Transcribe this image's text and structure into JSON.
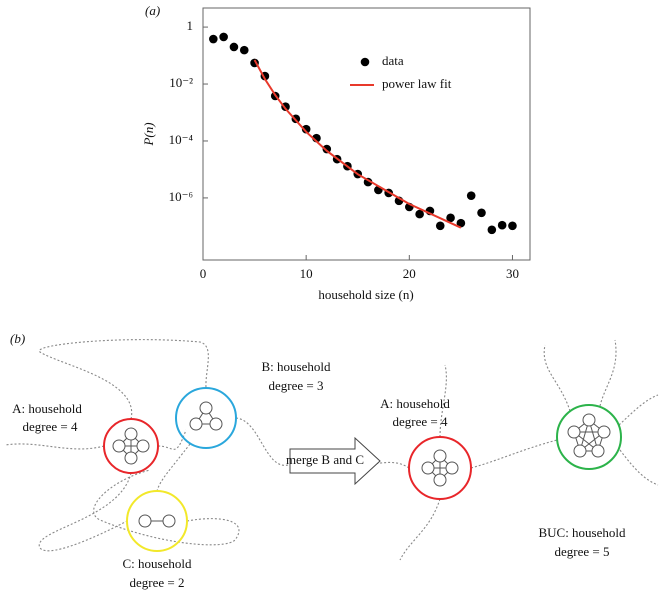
{
  "chart_data": {
    "type": "scatter",
    "title": "(a)",
    "x_label": "household size (n)",
    "y_label": "P(n)",
    "xlim": [
      0,
      31.7
    ],
    "xticks": [
      0,
      10,
      20,
      30
    ],
    "ylim": [
      4.68,
      6.6e-09
    ],
    "log_y": true,
    "yticks": [
      1,
      {
        "value": 0.01,
        "label": "10⁻²"
      },
      {
        "value": 0.0001,
        "label": "10⁻⁴"
      },
      {
        "value": 1e-06,
        "label": "10⁻⁶"
      }
    ],
    "legend": "upper right",
    "series": [
      {
        "name": "data",
        "color": "#000000",
        "style": "markers",
        "x": [
          1,
          2,
          3,
          4,
          5,
          6,
          7,
          8,
          9,
          10,
          11,
          12,
          13,
          14,
          15,
          16,
          17,
          18,
          19,
          20,
          21,
          22,
          23,
          24,
          25,
          26,
          27,
          28,
          29,
          30
        ],
        "values": [
          0.38,
          0.45,
          0.2,
          0.155,
          0.055,
          0.019,
          0.0038,
          0.0016,
          0.0006,
          0.00026,
          0.000126,
          5.2e-05,
          2.3e-05,
          1.3e-05,
          6.9e-06,
          3.6e-06,
          1.9e-06,
          1.5e-06,
          7.9e-07,
          4.8e-07,
          2.7e-07,
          3.5e-07,
          1.05e-07,
          2e-07,
          1.3e-07,
          1.2e-06,
          3e-07,
          7.6e-08,
          1.1e-07,
          1.05e-07
        ]
      },
      {
        "name": "power law fit",
        "color": "#e8392b",
        "style": "line",
        "x": [
          5,
          6,
          7,
          8,
          10,
          12,
          15,
          20,
          25
        ],
        "values": [
          0.07,
          0.015,
          0.0041,
          0.00135,
          0.00021,
          4.5e-05,
          6.8e-06,
          6.1e-07,
          9e-08
        ]
      }
    ]
  },
  "diagram": {
    "panel_label": "(b)",
    "merge_label": "merge B and C",
    "households": [
      {
        "name": "A: household",
        "degree": "degree = 4"
      },
      {
        "name": "B: household",
        "degree": "degree = 3"
      },
      {
        "name": "C: household",
        "degree": "degree = 2"
      },
      {
        "name": "A: household",
        "degree": "degree = 4"
      },
      {
        "name": "BUC: household",
        "degree": "degree = 5"
      }
    ]
  }
}
